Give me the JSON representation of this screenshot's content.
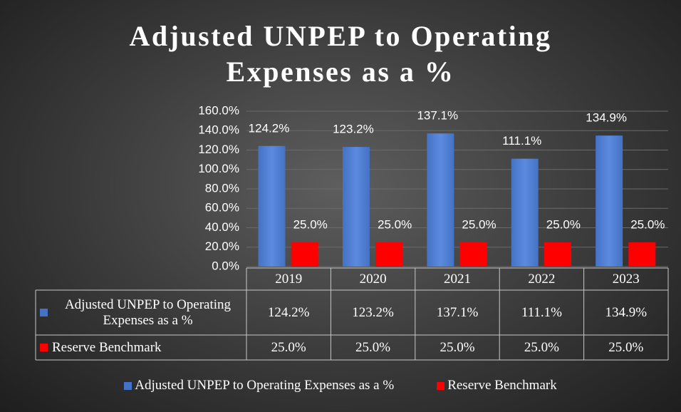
{
  "chart_data": {
    "type": "bar",
    "title": "Adjusted UNPEP to Operating Expenses as a %",
    "categories": [
      "2019",
      "2020",
      "2021",
      "2022",
      "2023"
    ],
    "series": [
      {
        "name": "Adjusted UNPEP to Operating Expenses as a %",
        "color": "#4472c4",
        "values": [
          124.2,
          123.2,
          137.1,
          111.1,
          134.9
        ],
        "value_labels": [
          "124.2%",
          "123.2%",
          "137.1%",
          "111.1%",
          "134.9%"
        ]
      },
      {
        "name": "Reserve Benchmark",
        "color": "#ff0000",
        "values": [
          25.0,
          25.0,
          25.0,
          25.0,
          25.0
        ],
        "value_labels": [
          "25.0%",
          "25.0%",
          "25.0%",
          "25.0%",
          "25.0%"
        ]
      }
    ],
    "ylim": [
      0,
      160
    ],
    "yticks": [
      {
        "value": 0,
        "label": "0.0%"
      },
      {
        "value": 20,
        "label": "20.0%"
      },
      {
        "value": 40,
        "label": "40.0%"
      },
      {
        "value": 60,
        "label": "60.0%"
      },
      {
        "value": 80,
        "label": "80.0%"
      },
      {
        "value": 100,
        "label": "100.0%"
      },
      {
        "value": 120,
        "label": "120.0%"
      },
      {
        "value": 140,
        "label": "140.0%"
      },
      {
        "value": 160,
        "label": "160.0%"
      }
    ],
    "grid": true,
    "data_table": true,
    "legend": "bottom"
  }
}
